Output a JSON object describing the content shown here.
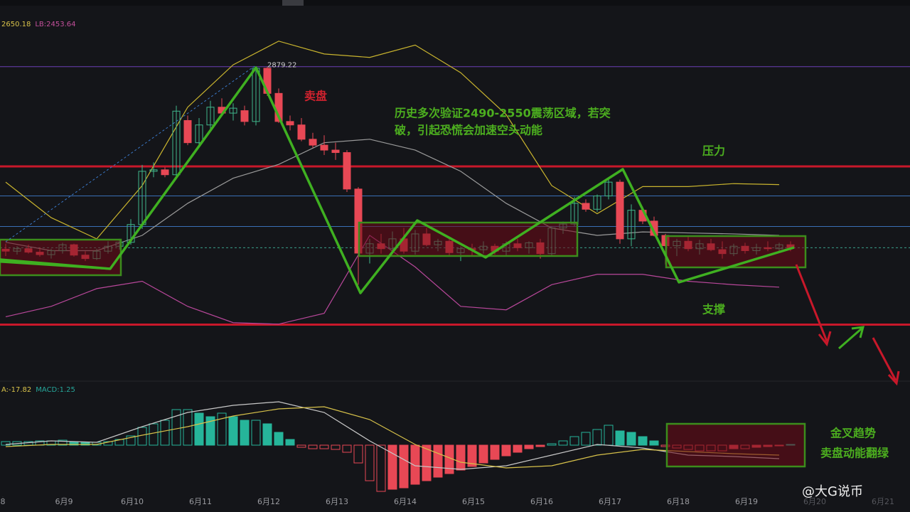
{
  "chart_data": [
    {
      "type": "candlestick",
      "legend_texts": [
        {
          "text": "2650.18",
          "color": "#d8c24a"
        },
        {
          "text": "LB:2453.64",
          "color": "#c4509c"
        }
      ],
      "xlim": [
        -0.5,
        79.5
      ],
      "ylim": [
        2250,
        3000
      ],
      "up_color": "#3fb68b",
      "down_color": "#e84855",
      "x": [
        0,
        1,
        2,
        3,
        4,
        5,
        6,
        7,
        8,
        9,
        10,
        11,
        12,
        13,
        14,
        15,
        16,
        17,
        18,
        19,
        20,
        21,
        22,
        23,
        24,
        25,
        26,
        27,
        28,
        29,
        30,
        31,
        32,
        33,
        34,
        35,
        36,
        37,
        38,
        39,
        40,
        41,
        42,
        43,
        44,
        45,
        46,
        47,
        48,
        49,
        50,
        51,
        52,
        53,
        54,
        55,
        56,
        57,
        58,
        59,
        60,
        61,
        62,
        63,
        64,
        65,
        66,
        67,
        68,
        69
      ],
      "open": [
        2509,
        2505,
        2510,
        2503,
        2498,
        2506,
        2518,
        2497,
        2490,
        2505,
        2515,
        2523,
        2559,
        2667,
        2670,
        2660,
        2770,
        2725,
        2761,
        2797,
        2785,
        2790,
        2768,
        2876,
        2825,
        2768,
        2761,
        2732,
        2720,
        2710,
        2705,
        2631,
        2501,
        2520,
        2510,
        2530,
        2505,
        2540,
        2518,
        2525,
        2502,
        2510,
        2508,
        2515,
        2505,
        2520,
        2512,
        2522,
        2500,
        2552,
        2560,
        2602,
        2590,
        2617,
        2645,
        2530,
        2588,
        2566,
        2537,
        2516,
        2525,
        2510,
        2520,
        2508,
        2500,
        2515,
        2506,
        2512,
        2510,
        2518
      ],
      "high": [
        2520,
        2515,
        2518,
        2512,
        2510,
        2522,
        2520,
        2505,
        2510,
        2525,
        2530,
        2570,
        2680,
        2685,
        2675,
        2800,
        2780,
        2775,
        2810,
        2815,
        2805,
        2800,
        2879,
        2879,
        2835,
        2780,
        2775,
        2745,
        2740,
        2725,
        2710,
        2635,
        2530,
        2540,
        2545,
        2552,
        2548,
        2552,
        2530,
        2530,
        2515,
        2520,
        2525,
        2520,
        2525,
        2530,
        2525,
        2530,
        2555,
        2565,
        2615,
        2610,
        2620,
        2655,
        2650,
        2600,
        2595,
        2575,
        2540,
        2530,
        2535,
        2528,
        2530,
        2525,
        2520,
        2522,
        2520,
        2525,
        2522,
        2525
      ],
      "low": [
        2495,
        2498,
        2500,
        2494,
        2490,
        2500,
        2494,
        2485,
        2487,
        2500,
        2508,
        2518,
        2550,
        2655,
        2655,
        2655,
        2720,
        2715,
        2750,
        2780,
        2770,
        2760,
        2760,
        2820,
        2765,
        2750,
        2728,
        2715,
        2700,
        2690,
        2625,
        2437,
        2480,
        2500,
        2505,
        2500,
        2498,
        2515,
        2505,
        2495,
        2485,
        2495,
        2500,
        2498,
        2495,
        2505,
        2500,
        2490,
        2495,
        2540,
        2555,
        2585,
        2585,
        2610,
        2520,
        2515,
        2560,
        2535,
        2478,
        2495,
        2505,
        2498,
        2505,
        2490,
        2495,
        2500,
        2498,
        2505,
        2502,
        2505
      ],
      "close": [
        2505,
        2510,
        2503,
        2498,
        2506,
        2518,
        2497,
        2490,
        2505,
        2515,
        2523,
        2559,
        2667,
        2670,
        2660,
        2789,
        2725,
        2761,
        2797,
        2785,
        2795,
        2768,
        2876,
        2825,
        2768,
        2761,
        2732,
        2720,
        2710,
        2705,
        2631,
        2501,
        2520,
        2510,
        2530,
        2505,
        2540,
        2518,
        2525,
        2502,
        2510,
        2508,
        2515,
        2505,
        2520,
        2512,
        2522,
        2500,
        2552,
        2560,
        2602,
        2590,
        2617,
        2645,
        2530,
        2588,
        2566,
        2537,
        2516,
        2525,
        2510,
        2520,
        2508,
        2500,
        2515,
        2506,
        2512,
        2510,
        2518,
        2512
      ],
      "lines": [
        {
          "color": "#c9b42e",
          "x": [
            0,
            4,
            8,
            12,
            16,
            20,
            24,
            28,
            32,
            36,
            40,
            44,
            48,
            52,
            56,
            60,
            64,
            68
          ],
          "values": [
            2645,
            2573,
            2530,
            2638,
            2797,
            2883,
            2931,
            2905,
            2898,
            2923,
            2867,
            2782,
            2638,
            2581,
            2636,
            2636,
            2642,
            2640
          ]
        },
        {
          "color": "#9a9a9a",
          "x": [
            0,
            4,
            8,
            12,
            16,
            20,
            24,
            28,
            32,
            36,
            40,
            44,
            48,
            52,
            56,
            60,
            64,
            68
          ],
          "values": [
            2523,
            2506,
            2506,
            2537,
            2602,
            2653,
            2681,
            2725,
            2732,
            2710,
            2667,
            2602,
            2552,
            2537,
            2544,
            2542,
            2540,
            2537
          ]
        },
        {
          "color": "#b8479a",
          "x": [
            0,
            4,
            8,
            12,
            16,
            20,
            24,
            28,
            32,
            36,
            40,
            44,
            48,
            52,
            56,
            60,
            64,
            68
          ],
          "values": [
            2372,
            2393,
            2429,
            2444,
            2393,
            2360,
            2357,
            2379,
            2537,
            2473,
            2393,
            2386,
            2437,
            2458,
            2458,
            2444,
            2437,
            2432
          ]
        }
      ],
      "hlines": [
        {
          "value": 2879.22,
          "color": "#6a3fb5",
          "labeled": true
        },
        {
          "value": 2677,
          "color": "#c8182a",
          "width": 3
        },
        {
          "value": 2356,
          "color": "#c8182a",
          "width": 3
        },
        {
          "value": 2617,
          "color": "#3a6fb5",
          "width": 1
        },
        {
          "value": 2555,
          "color": "#3a6fb5",
          "width": 1
        },
        {
          "value": 2512,
          "color": "#3aa08a",
          "width": 1,
          "dashed": true
        }
      ]
    },
    {
      "type": "macd",
      "legend_texts": [
        {
          "text": "A:-17.82",
          "color": "#d8c24a"
        },
        {
          "text": "MACD:1.25",
          "color": "#26a69a"
        }
      ],
      "xlim": [
        -0.5,
        79.5
      ],
      "ylim": [
        -92.5,
        107.5
      ],
      "up_color": "#26b59a",
      "down_color": "#e84855",
      "x": [
        0,
        1,
        2,
        3,
        4,
        5,
        6,
        7,
        8,
        9,
        10,
        11,
        12,
        13,
        14,
        15,
        16,
        17,
        18,
        19,
        20,
        21,
        22,
        23,
        24,
        25,
        26,
        27,
        28,
        29,
        30,
        31,
        32,
        33,
        34,
        35,
        36,
        37,
        38,
        39,
        40,
        41,
        42,
        43,
        44,
        45,
        46,
        47,
        48,
        49,
        50,
        51,
        52,
        53,
        54,
        55,
        56,
        57,
        58,
        59,
        60,
        61,
        62,
        63,
        64,
        65,
        66,
        67,
        68,
        69
      ],
      "values": [
        6.25,
        6.25,
        6.25,
        7.5,
        7.5,
        8.75,
        6.25,
        5,
        5,
        6.25,
        10,
        16.25,
        31.25,
        37.5,
        43.75,
        62.5,
        62.5,
        56.25,
        50,
        56.25,
        50,
        43.75,
        43.75,
        37.5,
        22.5,
        10,
        -3.75,
        -6.25,
        -6.25,
        -7.5,
        -12.5,
        -31.25,
        -62.5,
        -81.25,
        -77.5,
        -75,
        -68.75,
        -62.5,
        -56.25,
        -50,
        -43.75,
        -37.5,
        -31.25,
        -25,
        -18.75,
        -12.5,
        -6.25,
        -2.5,
        2.5,
        7.5,
        15,
        22.5,
        27.5,
        35,
        25,
        22.5,
        15,
        7.5,
        -2.5,
        -5,
        -7.5,
        -10,
        -10,
        -10,
        -6.25,
        -6.25,
        -3.75,
        -2.5,
        -1.25,
        1.25
      ],
      "lines": [
        {
          "color": "#c8c8c8",
          "x": [
            0,
            4,
            8,
            12,
            16,
            20,
            24,
            28,
            32,
            36,
            40,
            44,
            48,
            52,
            56,
            60,
            64,
            68
          ],
          "values": [
            1.25,
            7.5,
            5,
            32.5,
            57.5,
            70,
            76.25,
            57.5,
            7.5,
            -36.25,
            -42.5,
            -36.25,
            -17.5,
            1.25,
            -5,
            -17.5,
            -20,
            -23.75
          ]
        },
        {
          "color": "#d8c24a",
          "x": [
            0,
            4,
            8,
            12,
            16,
            20,
            24,
            28,
            32,
            36,
            40,
            44,
            48,
            52,
            56,
            60,
            64,
            68
          ],
          "values": [
            -2.5,
            1.25,
            1.25,
            17.5,
            32.5,
            51.25,
            63.75,
            67.5,
            45,
            1.25,
            -30,
            -40,
            -36.25,
            -17.5,
            -7.5,
            -11.25,
            -15,
            -17.5
          ]
        }
      ],
      "xticks": [
        {
          "value": -0.25,
          "label": "8"
        },
        {
          "value": 5.125,
          "label": "6月9"
        },
        {
          "value": 11.125,
          "label": "6月10"
        },
        {
          "value": 17.125,
          "label": "6月11"
        },
        {
          "value": 23.125,
          "label": "6月12"
        },
        {
          "value": 29.125,
          "label": "6月13"
        },
        {
          "value": 35.125,
          "label": "6月14"
        },
        {
          "value": 41.125,
          "label": "6月15"
        },
        {
          "value": 47.125,
          "label": "6月16"
        },
        {
          "value": 53.125,
          "label": "6月17"
        },
        {
          "value": 59.125,
          "label": "6月18"
        },
        {
          "value": 65.125,
          "label": "6月19"
        },
        {
          "value": 71.125,
          "label": "6月20"
        },
        {
          "value": 77.125,
          "label": "6月21"
        }
      ]
    }
  ],
  "annotations": [
    "卖盘",
    "历史多次验证2490-2550震荡区域，若突",
    "破，引起恐慌会加速空头动能",
    "压力",
    "支撑",
    "金叉趋势",
    "卖盘动能翻绿"
  ],
  "watermark": "@大G说币"
}
